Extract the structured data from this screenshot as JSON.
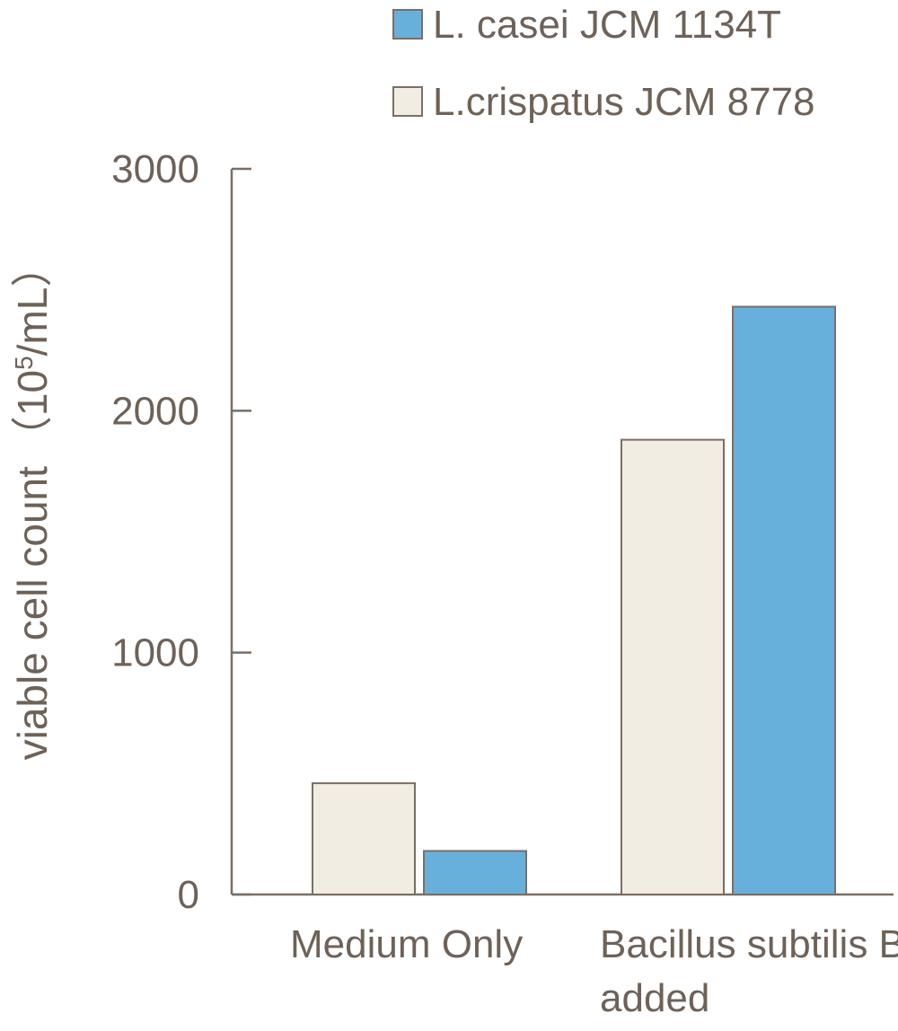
{
  "chart_data": {
    "type": "bar",
    "ylabel_main": "viable cell count",
    "ylabel_unit_prefix": "（10",
    "ylabel_unit_exp": "5",
    "ylabel_unit_suffix": "/mL）",
    "ylim": [
      0,
      3000
    ],
    "yticks": [
      0,
      1000,
      2000,
      3000
    ],
    "categories": [
      [
        "Medium Only"
      ],
      [
        "Bacillus subtilis BN",
        "added"
      ]
    ],
    "series": [
      {
        "name": "L.crispatus JCM 8778",
        "color": "#f2ede3",
        "values": [
          460,
          1880
        ]
      },
      {
        "name": "L. casei JCM 1134T",
        "color": "#68b0dc",
        "values": [
          180,
          2430
        ]
      }
    ],
    "legend_order": [
      1,
      0
    ],
    "legend_position": "top-right",
    "grid": false
  }
}
